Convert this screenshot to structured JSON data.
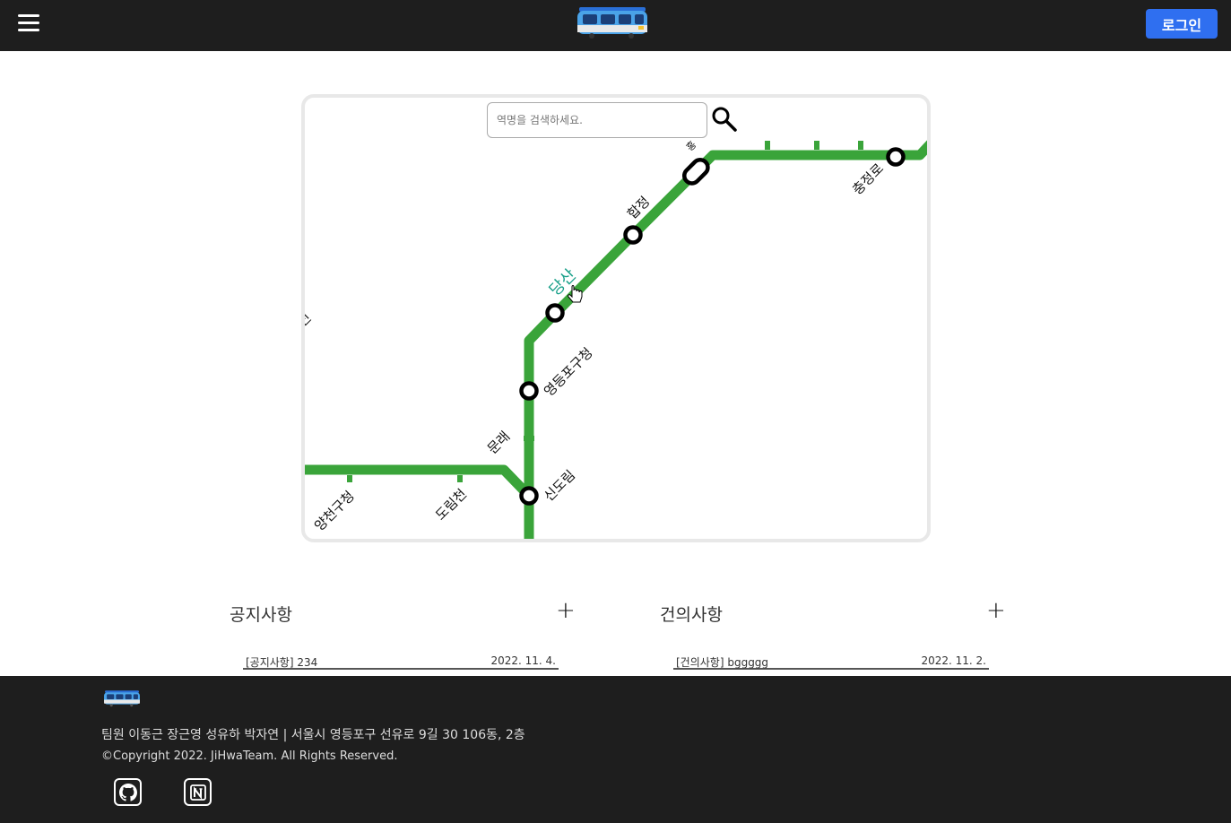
{
  "header": {
    "logo_icon": "tram-icon",
    "menu_icon": "hamburger-menu-icon",
    "login_label": "로그인"
  },
  "map": {
    "search": {
      "placeholder": "역명을 검색하세요.",
      "icon": "search-icon"
    },
    "line_color": "#3aa43a",
    "highlight_color": "#1aa08a",
    "stations": {
      "dangsan": "당산",
      "hapjeong": "합정",
      "chungjeongro": "충정로",
      "yeongdeungpo_gucheong": "영등포구청",
      "mullae": "문래",
      "sindorim": "신도림",
      "dorimcheon": "도림천",
      "yangcheon_gucheong": "양천구청",
      "partial_left": "신",
      "partial_top": "홍"
    }
  },
  "notice": {
    "title": "공지사항",
    "plus": "+",
    "items": [
      {
        "title": "[공지사항] 234",
        "date": "2022. 11. 4."
      }
    ]
  },
  "suggestion": {
    "title": "건의사항",
    "plus": "+",
    "items": [
      {
        "title": "[건의사항] bggggg",
        "date": "2022. 11. 2."
      }
    ]
  },
  "footer": {
    "info": "팀원 이동근 장근영 성유하 박자연 | 서울시 영등포구 선유로 9길 30 106동, 2층",
    "copyright": "©Copyright 2022. JiHwaTeam. All Rights Reserved.",
    "icons": [
      "github-icon",
      "notion-icon"
    ]
  }
}
